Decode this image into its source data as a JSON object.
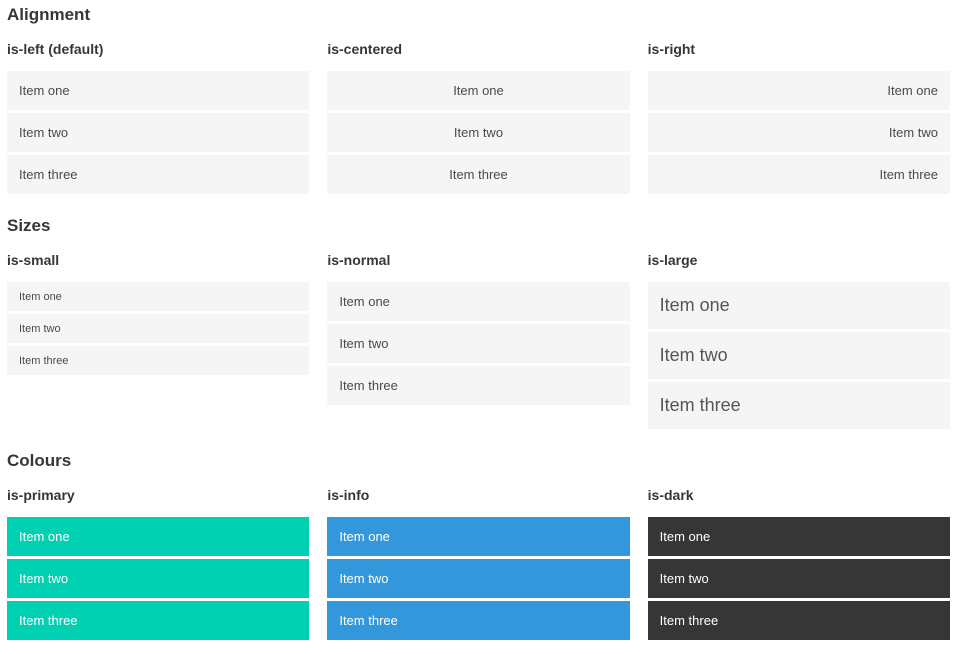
{
  "sections": [
    {
      "title": "Alignment",
      "groups": [
        {
          "label": "is-left (default)",
          "variant": "left",
          "items": [
            "Item one",
            "Item two",
            "Item three"
          ]
        },
        {
          "label": "is-centered",
          "variant": "centered",
          "items": [
            "Item one",
            "Item two",
            "Item three"
          ]
        },
        {
          "label": "is-right",
          "variant": "right",
          "items": [
            "Item one",
            "Item two",
            "Item three"
          ]
        }
      ]
    },
    {
      "title": "Sizes",
      "groups": [
        {
          "label": "is-small",
          "variant": "small",
          "items": [
            "Item one",
            "Item two",
            "Item three"
          ]
        },
        {
          "label": "is-normal",
          "variant": "normal",
          "items": [
            "Item one",
            "Item two",
            "Item three"
          ]
        },
        {
          "label": "is-large",
          "variant": "large",
          "items": [
            "Item one",
            "Item two",
            "Item three"
          ]
        }
      ]
    },
    {
      "title": "Colours",
      "groups": [
        {
          "label": "is-primary",
          "variant": "primary",
          "items": [
            "Item one",
            "Item two",
            "Item three"
          ]
        },
        {
          "label": "is-info",
          "variant": "info",
          "items": [
            "Item one",
            "Item two",
            "Item three"
          ]
        },
        {
          "label": "is-dark",
          "variant": "dark",
          "items": [
            "Item one",
            "Item two",
            "Item three"
          ]
        }
      ]
    }
  ],
  "colors": {
    "primary": "#00d1b2",
    "info": "#3398db",
    "dark": "#363636",
    "item_bg": "#f5f5f5",
    "heading_text": "#363636",
    "item_text": "#4a4a4a"
  }
}
